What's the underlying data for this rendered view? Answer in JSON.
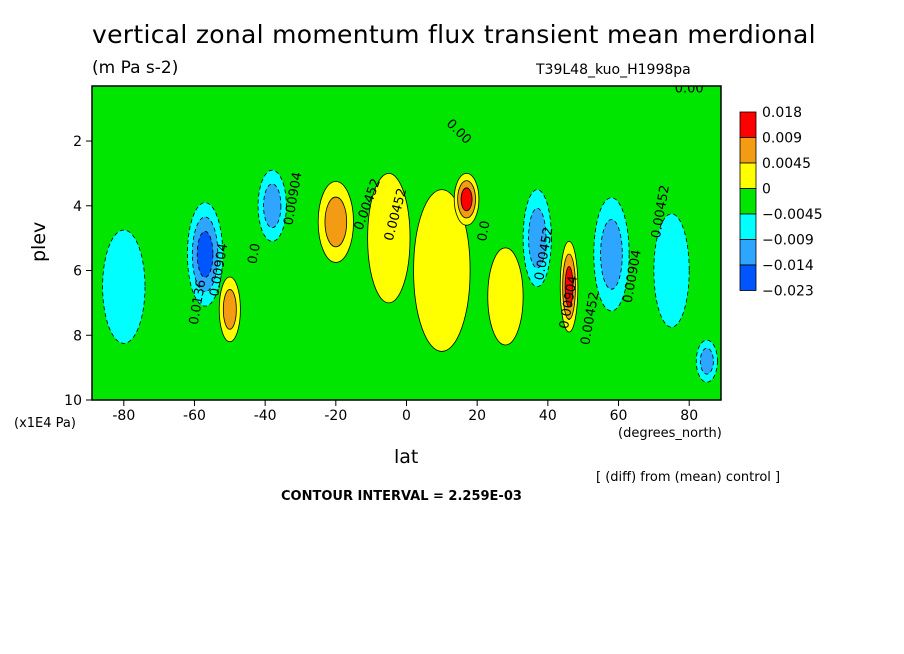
{
  "window": {
    "title": "vertical zonal momentum flux transient mean merdional",
    "units": "(m Pa s-2)",
    "run": "T39L48_kuo_H1998pa",
    "note": "[ (diff) from (mean) control ]",
    "interval": "CONTOUR INTERVAL = 2.259E-03"
  },
  "chart_data": {
    "type": "heatmap",
    "title": "vertical zonal momentum flux transient mean merdional",
    "subtitle": "(m Pa s-2)",
    "xlabel": "lat",
    "x_unit": "(degrees_north)",
    "ylabel": "plev",
    "y_unit": "(x1E4 Pa)",
    "xlim": [
      -89,
      89
    ],
    "ylim": [
      0.3,
      10
    ],
    "y_reversed": true,
    "x_ticks": [
      -80,
      -60,
      -40,
      -20,
      0,
      20,
      40,
      60,
      80
    ],
    "y_ticks": [
      2,
      4,
      6,
      8,
      10
    ],
    "contour_interval": 0.002259,
    "colorbar": {
      "labels": [
        "0.018",
        "0.009",
        "0.0045",
        "0",
        "-0.0045",
        "-0.009",
        "-0.014",
        "-0.023"
      ],
      "colors": [
        "#ff0000",
        "#f39b12",
        "#ffff00",
        "#00e600",
        "#00ffff",
        "#2ea6ff",
        "#0055ff"
      ],
      "neg_label_text": [
        "−0.0045",
        "−0.009",
        "−0.014",
        "−0.023"
      ]
    },
    "levels": [
      -0.023,
      -0.014,
      -0.009,
      -0.0045,
      0,
      0.0045,
      0.009,
      0.018
    ],
    "field_features": [
      {
        "lat": -80,
        "plev": 6.5,
        "value": -0.008,
        "w": 6,
        "h": 3.5
      },
      {
        "lat": -57,
        "plev": 5.5,
        "value": -0.016,
        "w": 5,
        "h": 3.2
      },
      {
        "lat": -50,
        "plev": 7.2,
        "value": 0.009,
        "w": 3,
        "h": 2.0
      },
      {
        "lat": -38,
        "plev": 4.0,
        "value": -0.01,
        "w": 4,
        "h": 2.2
      },
      {
        "lat": -20,
        "plev": 4.5,
        "value": 0.007,
        "w": 5,
        "h": 2.5
      },
      {
        "lat": -5,
        "plev": 5.0,
        "value": 0.003,
        "w": 6,
        "h": 4
      },
      {
        "lat": 10,
        "plev": 6.0,
        "value": 0.002,
        "w": 8,
        "h": 5
      },
      {
        "lat": 17,
        "plev": 3.8,
        "value": 0.016,
        "w": 3.5,
        "h": 1.6
      },
      {
        "lat": 28,
        "plev": 6.8,
        "value": 0.003,
        "w": 5,
        "h": 3
      },
      {
        "lat": 37,
        "plev": 5.0,
        "value": -0.011,
        "w": 4,
        "h": 3
      },
      {
        "lat": 46,
        "plev": 6.5,
        "value": 0.015,
        "w": 2.5,
        "h": 2.8
      },
      {
        "lat": 58,
        "plev": 5.5,
        "value": -0.011,
        "w": 5,
        "h": 3.5
      },
      {
        "lat": 75,
        "plev": 6.0,
        "value": -0.008,
        "w": 5,
        "h": 3.5
      },
      {
        "lat": 85,
        "plev": 8.8,
        "value": -0.014,
        "w": 3,
        "h": 1.3
      }
    ],
    "contour_labels": [
      {
        "text": "0.00",
        "lat": 80,
        "plev": 0.5,
        "rot": 0
      },
      {
        "text": "0.00",
        "lat": 14,
        "plev": 1.8,
        "rot": 45
      },
      {
        "text": "0.0136",
        "lat": -58,
        "plev": 7.0,
        "rot": -80
      },
      {
        "text": "0.00904",
        "lat": -52,
        "plev": 6.0,
        "rot": -80
      },
      {
        "text": "0.0",
        "lat": -42,
        "plev": 5.5,
        "rot": -80
      },
      {
        "text": "0.00904",
        "lat": -31,
        "plev": 3.8,
        "rot": -80
      },
      {
        "text": "0.00452",
        "lat": -10,
        "plev": 4.0,
        "rot": -70
      },
      {
        "text": "0.00452",
        "lat": -2,
        "plev": 4.3,
        "rot": -75
      },
      {
        "text": "0.0",
        "lat": 23,
        "plev": 4.8,
        "rot": -80
      },
      {
        "text": "0.00452",
        "lat": 40,
        "plev": 5.5,
        "rot": -80
      },
      {
        "text": "0.00904",
        "lat": 47,
        "plev": 7.0,
        "rot": -80
      },
      {
        "text": "0.00452",
        "lat": 53,
        "plev": 7.5,
        "rot": -80
      },
      {
        "text": "0.00904",
        "lat": 65,
        "plev": 6.2,
        "rot": -80
      },
      {
        "text": "0.00452",
        "lat": 73,
        "plev": 4.2,
        "rot": -80
      }
    ],
    "colors": {
      "red": "#ff0000",
      "orange": "#f39b12",
      "yellow": "#ffff00",
      "green": "#00e600",
      "cyan": "#00ffff",
      "lightblue": "#2ea6ff",
      "blue": "#0055ff"
    }
  }
}
